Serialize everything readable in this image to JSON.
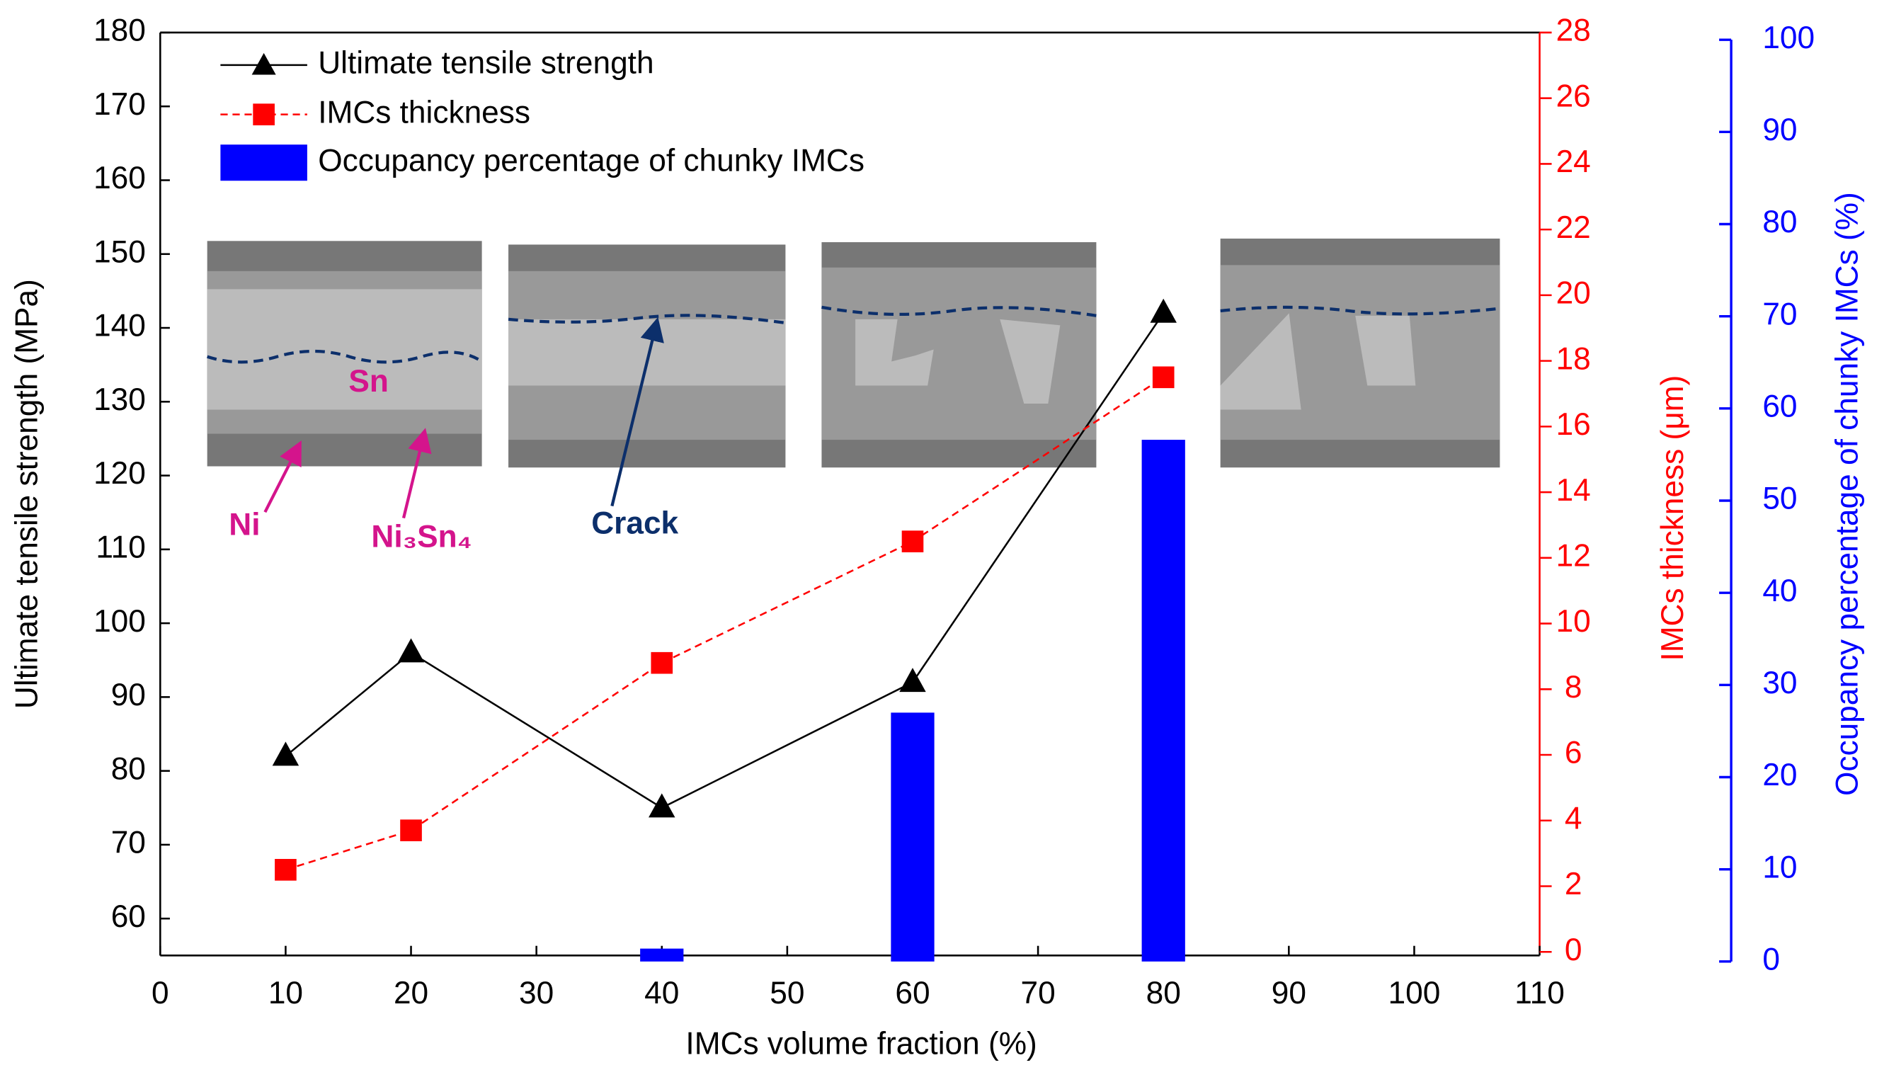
{
  "chart_data": {
    "type": "combo",
    "x_label": "IMCs volume fraction (%)",
    "y_label": "Ultimate tensile strength (MPa)",
    "y2_label": "IMCs thickness (μm)",
    "y3_label": "Occupancy percentage of chunky IMCs (%)",
    "xlim": [
      0,
      110
    ],
    "xticks": [
      0,
      10,
      20,
      30,
      40,
      50,
      60,
      70,
      80,
      90,
      100,
      110
    ],
    "ylim": [
      55,
      180
    ],
    "yticks": [
      60,
      70,
      80,
      90,
      100,
      110,
      120,
      130,
      140,
      150,
      160,
      170,
      180
    ],
    "y2lim": [
      0,
      28
    ],
    "y2ticks": [
      0,
      2,
      4,
      6,
      8,
      10,
      12,
      14,
      16,
      18,
      20,
      22,
      24,
      26,
      28
    ],
    "y3lim": [
      0,
      100
    ],
    "y3ticks": [
      0,
      10,
      20,
      30,
      40,
      50,
      60,
      70,
      80,
      90,
      100
    ],
    "legend": "upper left",
    "series": [
      {
        "name": "Ultimate tensile strength",
        "type": "line",
        "color": "#000000",
        "x": [
          10,
          20,
          40,
          60,
          80
        ],
        "values": [
          82,
          96,
          75,
          92,
          142
        ]
      },
      {
        "name": "IMCs thickness",
        "type": "line",
        "dashed": true,
        "axis": "y2",
        "color": "#ff0000",
        "x": [
          10,
          20,
          40,
          60,
          80
        ],
        "values": [
          2.5,
          3.7,
          8.8,
          12.5,
          17.5
        ]
      },
      {
        "name": "Occupancy percentage of chunky IMCs",
        "type": "bar",
        "axis": "y3",
        "color": "#0000ff",
        "x": [
          40,
          60,
          80
        ],
        "values": [
          1.4,
          27,
          56.6
        ]
      }
    ],
    "annotations": [
      "Sn",
      "Ni",
      "Ni₃Sn₄",
      "Crack"
    ]
  }
}
